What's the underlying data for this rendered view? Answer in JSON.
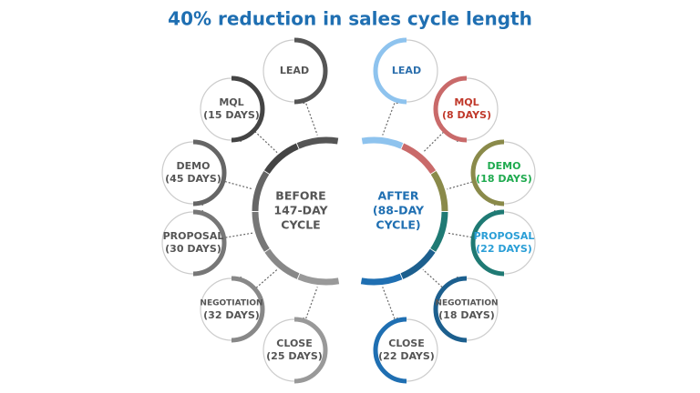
{
  "title": "40% reduction in sales cycle length",
  "before": {
    "center": [
      "BEFORE",
      "147-DAY",
      "CYCLE"
    ],
    "stages": [
      {
        "lines": [
          "LEAD"
        ]
      },
      {
        "lines": [
          "MQL",
          "(15 DAYS)"
        ]
      },
      {
        "lines": [
          "DEMO",
          "(45 DAYS)"
        ]
      },
      {
        "lines": [
          "PROPOSAL",
          "(30 DAYS)"
        ]
      },
      {
        "lines": [
          "NEGOTIATION",
          "(32 DAYS)"
        ]
      },
      {
        "lines": [
          "CLOSE",
          "(25 DAYS)"
        ]
      }
    ]
  },
  "after": {
    "center": [
      "AFTER",
      "(88-DAY",
      "CYCLE)"
    ],
    "stages": [
      {
        "lines": [
          "LEAD"
        ]
      },
      {
        "lines": [
          "MQL",
          "(8 DAYS)"
        ]
      },
      {
        "lines": [
          "DEMO",
          "(18 DAYS)"
        ]
      },
      {
        "lines": [
          "PROPOSAL",
          "(22 DAYS)"
        ]
      },
      {
        "lines": [
          "NEGOTIATION",
          "(18 DAYS)"
        ]
      },
      {
        "lines": [
          "CLOSE",
          "(22 DAYS)"
        ]
      }
    ]
  }
}
